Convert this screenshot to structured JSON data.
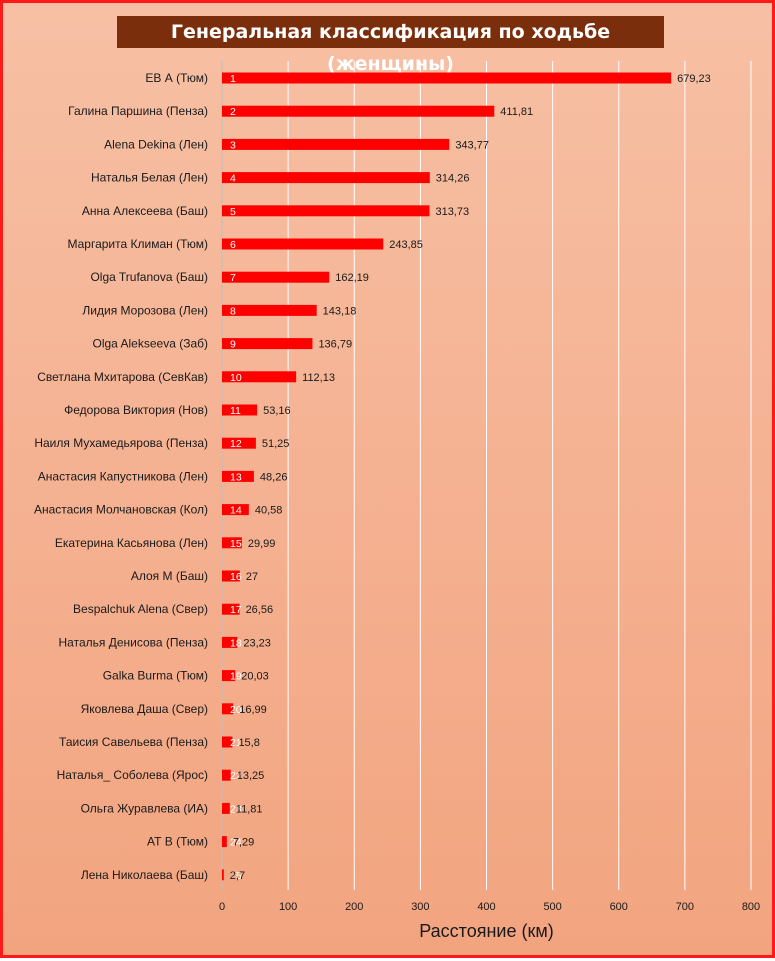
{
  "chart_data": {
    "type": "bar",
    "orientation": "horizontal",
    "title": "Генеральная классификация по ходьбе (женщины)",
    "xlabel": "Расстояние (км)",
    "ylabel": "",
    "xlim": [
      0,
      800
    ],
    "xticks": [
      "0",
      "100",
      "200",
      "300",
      "400",
      "500",
      "600",
      "700",
      "800"
    ],
    "grid": "vertical",
    "bar_color": "#ff0000",
    "categories": [
      "ЕВ А (Тюм)",
      "Галина Паршина (Пенза)",
      "Alena Dekina (Лен)",
      "Наталья Белая (Лен)",
      "Анна Алексеева (Баш)",
      "Маргарита Климан (Тюм)",
      "Olga Trufanova (Баш)",
      "Лидия Морозова (Лен)",
      "Olga Alekseeva  (Заб)",
      "Светлана Мхитарова (СевКав)",
      "Федорова Виктория (Нов)",
      "Наиля Мухамедьярова (Пенза)",
      "Анастасия Капустникова (Лен)",
      "Анастасия Молчановская (Кол)",
      "Екатерина Касьянова (Лен)",
      "Алоя М (Баш)",
      "Bespalchuk Alena  (Свер)",
      "Наталья Денисова (Пенза)",
      "Galka Burma (Тюм)",
      "Яковлева Даша (Свер)",
      "Таисия Савельева (Пенза)",
      "Наталья_ Соболева (Ярос)",
      "Ольга Журавлева (ИА)",
      "АТ В (Тюм)",
      "Лена Николаева (Баш)"
    ],
    "values": [
      679.23,
      411.81,
      343.77,
      314.26,
      313.73,
      243.85,
      162.19,
      143.18,
      136.79,
      112.13,
      53.16,
      51.25,
      48.26,
      40.58,
      29.99,
      27,
      26.56,
      23.23,
      20.03,
      16.99,
      15.8,
      13.25,
      11.81,
      7.29,
      2.7
    ],
    "value_labels": [
      "679,23",
      "411,81",
      "343,77",
      "314,26",
      "313,73",
      "243,85",
      "162,19",
      "143,18",
      "136,79",
      "112,13",
      "53,16",
      "51,25",
      "48,26",
      "40,58",
      "29,99",
      "27",
      "26,56",
      "23,23",
      "20,03",
      "16,99",
      "15,8",
      "13,25",
      "11,81",
      "7,29",
      "2,7"
    ],
    "ranks": [
      "1",
      "2",
      "3",
      "4",
      "5",
      "6",
      "7",
      "8",
      "9",
      "10",
      "11",
      "12",
      "13",
      "14",
      "15",
      "16",
      "17",
      "18",
      "19",
      "20",
      "21",
      "22",
      "23",
      "24",
      "25"
    ]
  }
}
